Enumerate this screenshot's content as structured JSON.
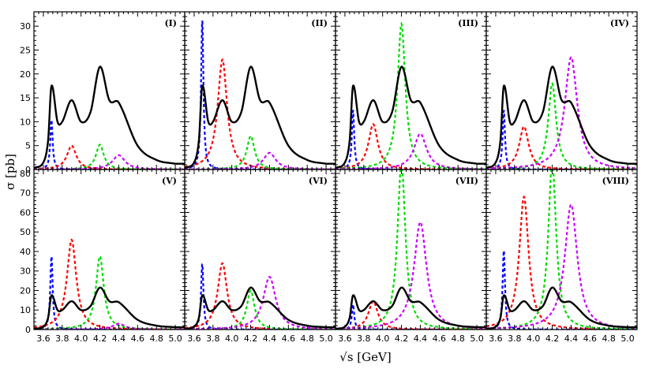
{
  "figure": {
    "ylabel": "σ  [pb]",
    "xlabel": "√s  [GeV]"
  },
  "chart_data": {
    "type": "line",
    "xlim": [
      3.5,
      5.1
    ],
    "x_ticks": [
      "3.6",
      "3.8",
      "4.0",
      "4.2",
      "4.4",
      "4.6",
      "4.8",
      "5.0"
    ],
    "top_row_ylim": [
      0,
      33
    ],
    "top_row_y_ticks": [
      "0",
      "5",
      "10",
      "15",
      "20",
      "25",
      "30"
    ],
    "bottom_row_ylim": [
      0,
      82
    ],
    "bottom_row_y_ticks": [
      "0",
      "10",
      "20",
      "30",
      "40",
      "50",
      "60",
      "70",
      "80"
    ],
    "grid": false,
    "resonances": [
      {
        "mass": 3.686,
        "width": 0.03
      },
      {
        "mass": 3.9,
        "width": 0.12
      },
      {
        "mass": 4.2,
        "width": 0.1
      },
      {
        "mass": 4.4,
        "width": 0.16
      }
    ],
    "series_colors": {
      "total": "#000000",
      "r1": "#0000ff",
      "r2": "#ff0000",
      "r3": "#00dd00",
      "r4": "#cc00ff"
    },
    "black_curve_points": [
      {
        "x": 3.5,
        "y": 0.3
      },
      {
        "x": 3.6,
        "y": 1.5
      },
      {
        "x": 3.65,
        "y": 6
      },
      {
        "x": 3.686,
        "y": 17.5
      },
      {
        "x": 3.75,
        "y": 10
      },
      {
        "x": 3.8,
        "y": 10
      },
      {
        "x": 3.9,
        "y": 14.5
      },
      {
        "x": 4.0,
        "y": 10
      },
      {
        "x": 4.1,
        "y": 12
      },
      {
        "x": 4.2,
        "y": 21.5
      },
      {
        "x": 4.3,
        "y": 14.5
      },
      {
        "x": 4.4,
        "y": 14
      },
      {
        "x": 4.6,
        "y": 5
      },
      {
        "x": 4.8,
        "y": 2
      },
      {
        "x": 5.0,
        "y": 1.2
      }
    ],
    "panels": [
      {
        "label": "(I)",
        "peaks": [
          10.5,
          5,
          5.2,
          3
        ]
      },
      {
        "label": "(II)",
        "peaks": [
          31.5,
          23,
          7,
          3.5
        ]
      },
      {
        "label": "(III)",
        "peaks": [
          12.5,
          9.5,
          30.5,
          7.5
        ]
      },
      {
        "label": "(IV)",
        "peaks": [
          12.5,
          9,
          18,
          23.5
        ]
      },
      {
        "label": "(V)",
        "peaks": [
          38,
          46,
          37.5,
          3
        ]
      },
      {
        "label": "(VI)",
        "peaks": [
          34,
          34,
          20,
          27
        ]
      },
      {
        "label": "(VII)",
        "peaks": [
          13,
          14.5,
          86,
          55
        ]
      },
      {
        "label": "(VIII)",
        "peaks": [
          41,
          68,
          86,
          64
        ]
      }
    ]
  }
}
